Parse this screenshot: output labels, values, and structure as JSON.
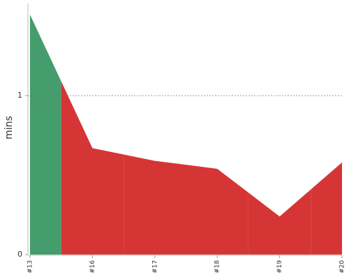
{
  "chart_data": {
    "type": "area",
    "y_label": "mins",
    "categories": [
      "#13",
      "#16",
      "#17",
      "#18",
      "#19",
      "#20"
    ],
    "values": [
      1.51,
      0.67,
      0.59,
      0.54,
      0.24,
      0.58
    ],
    "point_colors": [
      "#459c6c",
      "#d63535",
      "#d63535",
      "#d63535",
      "#d63535",
      "#d63535"
    ],
    "ylim": [
      0,
      1.58
    ],
    "yticks": [
      0,
      1
    ],
    "grid": true
  }
}
